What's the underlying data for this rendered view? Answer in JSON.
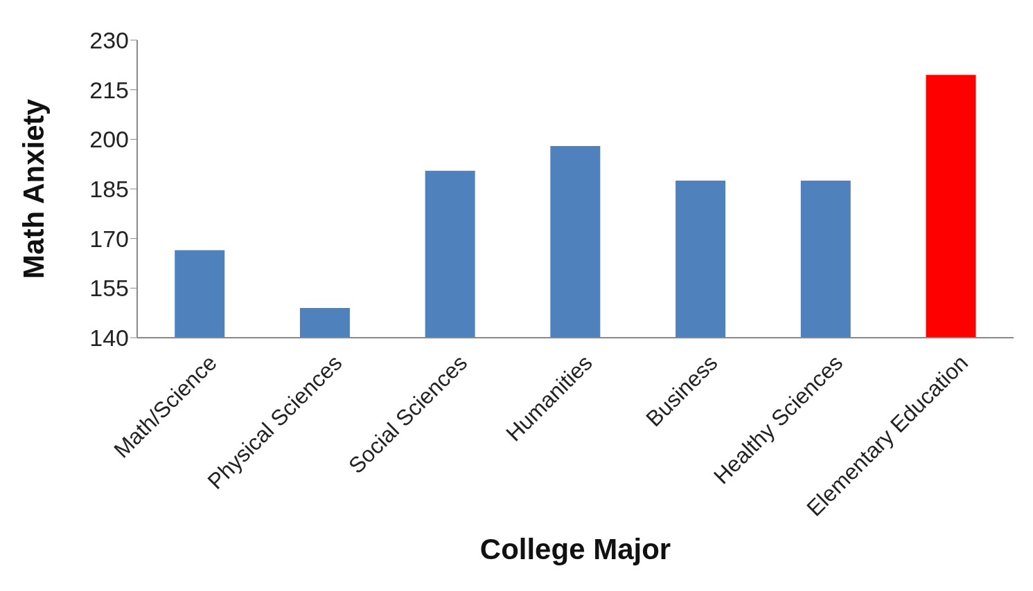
{
  "chart_data": {
    "type": "bar",
    "xlabel": "College Major",
    "ylabel": "Math Anxiety",
    "categories": [
      "Math/Science",
      "Physical Sciences",
      "Social Sciences",
      "Humanities",
      "Business",
      "Healthy Sciences",
      "Elementary Education"
    ],
    "values": [
      166.5,
      149,
      190.5,
      198,
      187.5,
      187.5,
      219.5
    ],
    "colors": [
      "#4f81bd",
      "#4f81bd",
      "#4f81bd",
      "#4f81bd",
      "#4f81bd",
      "#4f81bd",
      "#ff0000"
    ],
    "ylim": [
      140,
      230
    ],
    "yticks": [
      140,
      155,
      170,
      185,
      200,
      215,
      230
    ],
    "grid": false
  }
}
